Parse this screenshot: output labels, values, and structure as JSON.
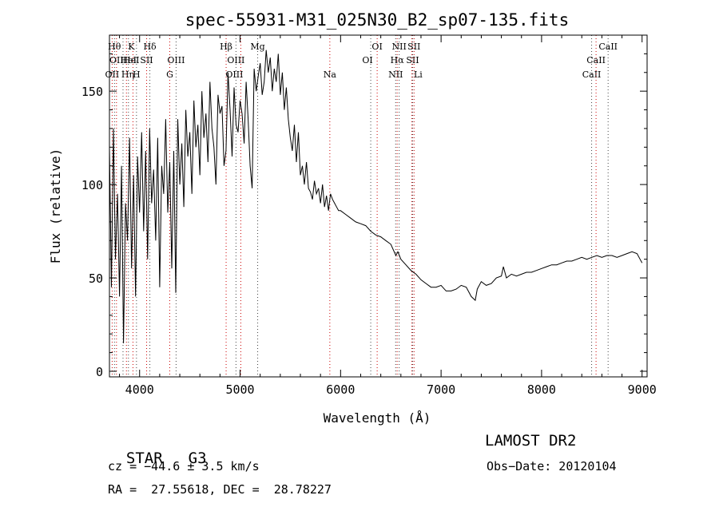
{
  "chart_data": {
    "type": "line",
    "title": "spec-55931-M31_025N30_B2_sp07-135.fits",
    "xlabel": "Wavelength (Å)",
    "ylabel": "Flux (relative)",
    "xlim": [
      3700,
      9050
    ],
    "ylim": [
      -3,
      180
    ],
    "x_ticks": [
      4000,
      5000,
      6000,
      7000,
      8000,
      9000
    ],
    "y_ticks": [
      0,
      50,
      100,
      150
    ],
    "grid": false,
    "series": [
      {
        "x": [
          3700,
          3720,
          3740,
          3760,
          3780,
          3800,
          3820,
          3840,
          3860,
          3880,
          3900,
          3920,
          3940,
          3960,
          3980,
          4000,
          4020,
          4040,
          4060,
          4080,
          4100,
          4120,
          4140,
          4160,
          4180,
          4200,
          4220,
          4240,
          4260,
          4280,
          4300,
          4320,
          4340,
          4360,
          4380,
          4400,
          4420,
          4440,
          4460,
          4480,
          4500,
          4520,
          4540,
          4560,
          4580,
          4600,
          4620,
          4640,
          4660,
          4680,
          4700,
          4720,
          4740,
          4760,
          4780,
          4800,
          4820,
          4840,
          4860,
          4880,
          4900,
          4920,
          4940,
          4960,
          4980,
          5000,
          5020,
          5040,
          5060,
          5080,
          5100,
          5120,
          5140,
          5160,
          5180,
          5200,
          5220,
          5240,
          5260,
          5280,
          5300,
          5320,
          5340,
          5360,
          5380,
          5400,
          5420,
          5440,
          5460,
          5480,
          5500,
          5520,
          5540,
          5560,
          5580,
          5600,
          5620,
          5640,
          5660,
          5680,
          5700,
          5720,
          5740,
          5760,
          5780,
          5800,
          5820,
          5840,
          5860,
          5880,
          5900,
          5920,
          5940,
          5960,
          5980,
          6000,
          6050,
          6100,
          6150,
          6200,
          6250,
          6300,
          6350,
          6400,
          6450,
          6500,
          6550,
          6570,
          6600,
          6650,
          6700,
          6750,
          6800,
          6850,
          6900,
          6950,
          7000,
          7050,
          7100,
          7150,
          7200,
          7250,
          7300,
          7340,
          7360,
          7400,
          7450,
          7500,
          7550,
          7600,
          7620,
          7650,
          7700,
          7750,
          7800,
          7850,
          7900,
          7950,
          8000,
          8050,
          8100,
          8150,
          8200,
          8250,
          8300,
          8350,
          8400,
          8450,
          8500,
          8550,
          8600,
          8650,
          8700,
          8750,
          8800,
          8850,
          8900,
          8950,
          8980,
          9000
        ],
        "values": [
          120,
          45,
          130,
          60,
          95,
          40,
          110,
          15,
          90,
          70,
          125,
          55,
          105,
          40,
          115,
          85,
          128,
          75,
          118,
          60,
          130,
          90,
          108,
          70,
          125,
          45,
          110,
          95,
          135,
          85,
          112,
          55,
          118,
          42,
          135,
          100,
          122,
          88,
          140,
          115,
          128,
          95,
          145,
          120,
          132,
          105,
          150,
          125,
          138,
          112,
          155,
          130,
          120,
          100,
          148,
          138,
          142,
          110,
          118,
          160,
          140,
          115,
          152,
          132,
          128,
          145,
          138,
          122,
          155,
          135,
          110,
          98,
          162,
          150,
          158,
          165,
          148,
          155,
          172,
          160,
          168,
          150,
          162,
          155,
          170,
          148,
          160,
          140,
          152,
          135,
          125,
          118,
          132,
          112,
          128,
          105,
          110,
          100,
          112,
          98,
          96,
          92,
          102,
          95,
          98,
          90,
          100,
          88,
          94,
          86,
          95,
          92,
          90,
          88,
          86,
          86,
          84,
          82,
          80,
          79,
          78,
          75,
          73,
          72,
          70,
          68,
          62,
          64,
          60,
          57,
          54,
          52,
          49,
          47,
          45,
          45,
          46,
          43,
          43,
          44,
          46,
          45,
          40,
          38,
          44,
          48,
          46,
          47,
          50,
          51,
          56,
          50,
          52,
          51,
          52,
          53,
          53,
          54,
          55,
          56,
          57,
          57,
          58,
          59,
          59,
          60,
          61,
          60,
          61,
          62,
          61,
          62,
          62,
          61,
          62,
          63,
          64,
          63,
          60,
          58
        ]
      }
    ],
    "line_markers": [
      {
        "wl": 3727,
        "label": "OII",
        "row": 3,
        "dx": 0
      },
      {
        "wl": 3750,
        "label": "Hθ",
        "row": 1,
        "dx": 0
      },
      {
        "wl": 3770,
        "label": "OII",
        "row": 2,
        "dx": 0
      },
      {
        "wl": 3835,
        "label": "Hη",
        "row": 3,
        "dx": 6
      },
      {
        "wl": 3869,
        "label": "HeI",
        "row": 2,
        "dx": 6
      },
      {
        "wl": 3889,
        "label": "HeI",
        "row": 2,
        "dx": 0
      },
      {
        "wl": 3934,
        "label": "K",
        "row": 1,
        "dx": -2
      },
      {
        "wl": 3969,
        "label": "H",
        "row": 3,
        "dx": 0
      },
      {
        "wl": 4070,
        "label": "SII",
        "row": 2,
        "dx": 0
      },
      {
        "wl": 4102,
        "label": "Hδ",
        "row": 1,
        "dx": 0
      },
      {
        "wl": 4300,
        "label": "G",
        "row": 3,
        "dx": 0
      },
      {
        "wl": 4363,
        "label": "OIII",
        "row": 2,
        "dx": 0
      },
      {
        "wl": 4861,
        "label": "Hβ",
        "row": 1,
        "dx": 0
      },
      {
        "wl": 4959,
        "label": "OIII",
        "row": 2,
        "dx": 0
      },
      {
        "wl": 5007,
        "label": "OIII",
        "row": 3,
        "dx": -8
      },
      {
        "wl": 5175,
        "label": "Mg",
        "row": 1,
        "dx": 0
      },
      {
        "wl": 5893,
        "label": "Na",
        "row": 3,
        "dx": 0
      },
      {
        "wl": 6300,
        "label": "OI",
        "row": 2,
        "dx": -4
      },
      {
        "wl": 6364,
        "label": "OI",
        "row": 1,
        "dx": 0
      },
      {
        "wl": 6548,
        "label": "NII",
        "row": 3,
        "dx": 0
      },
      {
        "wl": 6563,
        "label": "Hα",
        "row": 2,
        "dx": 0
      },
      {
        "wl": 6583,
        "label": "NII",
        "row": 1,
        "dx": 0
      },
      {
        "wl": 6708,
        "label": "Li",
        "row": 3,
        "dx": 8
      },
      {
        "wl": 6717,
        "label": "SII",
        "row": 2,
        "dx": 0
      },
      {
        "wl": 6731,
        "label": "SII",
        "row": 1,
        "dx": 0
      },
      {
        "wl": 8498,
        "label": "CaII",
        "row": 3,
        "dx": 0
      },
      {
        "wl": 8542,
        "label": "CaII",
        "row": 2,
        "dx": 0
      },
      {
        "wl": 8662,
        "label": "CaII",
        "row": 1,
        "dx": 0
      }
    ],
    "colors": {
      "spectrum": "#000000",
      "marker_dotted": "#444444",
      "marker_red": "#cc0000"
    }
  },
  "info": {
    "class_label": "STAR",
    "subclass": "G3",
    "survey": "LAMOST DR2",
    "cz": "cz = −44.6 ± 3.5 km/s",
    "obs_date": "Obs−Date: 20120104",
    "coords": "RA =  27.55618, DEC =  28.78227"
  }
}
